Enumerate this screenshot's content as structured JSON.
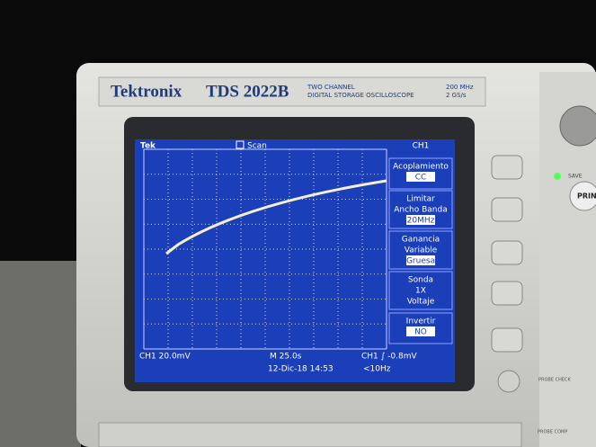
{
  "header": {
    "brand": "Tektronix",
    "model": "TDS 2022B",
    "line1": "TWO CHANNEL",
    "line2": "DIGITAL STORAGE OSCILLOSCOPE",
    "spec1": "200 MHz",
    "spec2": "2 GS/s"
  },
  "screen": {
    "logo": "Tek",
    "mode": "Scan",
    "menu_title": "CH1",
    "menu": [
      [
        "Acoplamiento",
        "CC"
      ],
      [
        "Limitar",
        "Ancho Banda",
        "20MHz"
      ],
      [
        "Ganancia",
        "Variable",
        "Gruesa"
      ],
      [
        "Sonda",
        "1X",
        "Voltaje"
      ],
      [
        "Invertir",
        "NO"
      ]
    ],
    "status": {
      "ch": "CH1  20.0mV",
      "time": "M 25.0s",
      "date": "12-Dic-18 14:53",
      "trigger": "CH1 ∫ -0.8mV",
      "freq": "<10Hz"
    }
  },
  "panel": {
    "save": "SAVE",
    "print": "PRIN",
    "probe_check": "PROBE CHECK",
    "probe_comp": "PROBE COMP"
  }
}
